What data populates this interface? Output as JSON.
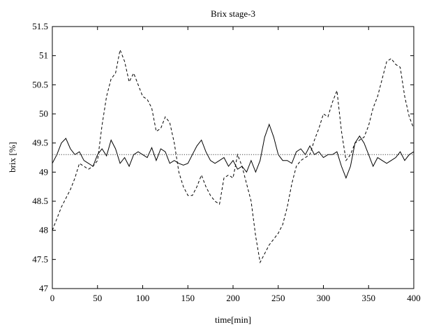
{
  "chart_data": {
    "type": "line",
    "title": "Brix stage-3",
    "xlabel": "time[min]",
    "ylabel": "brix [%]",
    "xlim": [
      0,
      400
    ],
    "ylim": [
      47,
      51.5
    ],
    "xticks": [
      0,
      50,
      100,
      150,
      200,
      250,
      300,
      350,
      400
    ],
    "xtick_labels": [
      "0",
      "50",
      "100",
      "150",
      "200",
      "250",
      "300",
      "350",
      "400"
    ],
    "yticks": [
      47,
      47.5,
      48,
      48.5,
      49,
      49.5,
      50,
      50.5,
      51,
      51.5
    ],
    "ytick_labels": [
      "47",
      "47.5",
      "48",
      "48.5",
      "49",
      "49.5",
      "50",
      "50.5",
      "51",
      "51.5"
    ],
    "grid": false,
    "series": [
      {
        "style": "solid",
        "color": "#000000",
        "x": [
          0,
          5,
          10,
          15,
          20,
          25,
          30,
          35,
          40,
          45,
          50,
          55,
          60,
          65,
          70,
          75,
          80,
          85,
          90,
          95,
          100,
          105,
          110,
          115,
          120,
          125,
          130,
          135,
          140,
          145,
          150,
          155,
          160,
          165,
          170,
          175,
          180,
          185,
          190,
          195,
          200,
          205,
          210,
          215,
          220,
          225,
          230,
          235,
          240,
          245,
          250,
          255,
          260,
          265,
          270,
          275,
          280,
          285,
          290,
          295,
          300,
          305,
          310,
          315,
          320,
          325,
          330,
          335,
          340,
          345,
          350,
          355,
          360,
          365,
          370,
          375,
          380,
          385,
          390,
          395,
          400
        ],
        "y": [
          49.15,
          49.3,
          49.5,
          49.58,
          49.4,
          49.3,
          49.35,
          49.2,
          49.15,
          49.1,
          49.3,
          49.4,
          49.28,
          49.55,
          49.4,
          49.15,
          49.25,
          49.1,
          49.3,
          49.35,
          49.3,
          49.25,
          49.42,
          49.2,
          49.4,
          49.35,
          49.15,
          49.2,
          49.15,
          49.12,
          49.15,
          49.3,
          49.45,
          49.55,
          49.35,
          49.2,
          49.15,
          49.2,
          49.25,
          49.1,
          49.2,
          49.05,
          49.1,
          49.0,
          49.2,
          49.0,
          49.2,
          49.6,
          49.82,
          49.6,
          49.3,
          49.2,
          49.2,
          49.15,
          49.35,
          49.4,
          49.3,
          49.45,
          49.3,
          49.35,
          49.25,
          49.3,
          49.3,
          49.35,
          49.1,
          48.9,
          49.1,
          49.5,
          49.62,
          49.5,
          49.3,
          49.1,
          49.25,
          49.2,
          49.15,
          49.2,
          49.25,
          49.35,
          49.2,
          49.3,
          49.35
        ]
      },
      {
        "style": "dashed",
        "color": "#000000",
        "x": [
          0,
          5,
          10,
          15,
          20,
          25,
          30,
          35,
          40,
          45,
          50,
          55,
          60,
          65,
          70,
          75,
          80,
          85,
          90,
          95,
          100,
          105,
          110,
          115,
          120,
          125,
          130,
          135,
          140,
          145,
          150,
          155,
          160,
          165,
          170,
          175,
          180,
          185,
          190,
          195,
          200,
          205,
          210,
          215,
          220,
          225,
          230,
          235,
          240,
          245,
          250,
          255,
          260,
          265,
          270,
          275,
          280,
          285,
          290,
          295,
          300,
          305,
          310,
          315,
          320,
          325,
          330,
          335,
          340,
          345,
          350,
          355,
          360,
          365,
          370,
          375,
          380,
          385,
          390,
          395,
          400
        ],
        "y": [
          48.0,
          48.2,
          48.4,
          48.55,
          48.7,
          48.9,
          49.15,
          49.1,
          49.05,
          49.1,
          49.2,
          49.8,
          50.3,
          50.6,
          50.7,
          51.1,
          50.9,
          50.55,
          50.7,
          50.5,
          50.3,
          50.25,
          50.1,
          49.7,
          49.75,
          49.95,
          49.85,
          49.5,
          49.0,
          48.75,
          48.6,
          48.6,
          48.75,
          48.95,
          48.75,
          48.6,
          48.5,
          48.45,
          48.9,
          48.95,
          48.9,
          49.3,
          49.1,
          48.8,
          48.5,
          47.9,
          47.45,
          47.6,
          47.75,
          47.85,
          47.95,
          48.1,
          48.4,
          48.8,
          49.1,
          49.2,
          49.25,
          49.3,
          49.55,
          49.75,
          50.0,
          49.95,
          50.2,
          50.4,
          49.7,
          49.2,
          49.3,
          49.5,
          49.55,
          49.6,
          49.8,
          50.1,
          50.3,
          50.6,
          50.9,
          50.95,
          50.85,
          50.8,
          50.3,
          49.95,
          49.75
        ]
      },
      {
        "style": "dotted",
        "color": "#000000",
        "x": [
          0,
          400
        ],
        "y": [
          49.3,
          49.3
        ]
      }
    ]
  }
}
